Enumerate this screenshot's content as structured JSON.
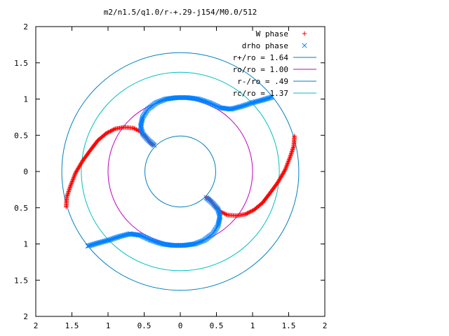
{
  "chart_data": {
    "type": "scatter",
    "title": "m2/n1.5/q1.0/r-+.29-j154/M0.0/512",
    "xlim": [
      -2,
      2
    ],
    "ylim": [
      -2,
      2
    ],
    "x_tick_labels": [
      "2",
      "1.5",
      "1",
      "0.5",
      "0",
      "0.5",
      "1",
      "1.5",
      "2"
    ],
    "y_tick_labels": [
      "2",
      "1.5",
      "1",
      "0.5",
      "0",
      "0.5",
      "1",
      "1.5",
      "2"
    ],
    "grid": false,
    "legend_position": "top-right",
    "series": [
      {
        "name": "W phase",
        "marker": "+",
        "color": "#ff0000",
        "points": [
          [
            -1.58,
            -0.49
          ],
          [
            -1.57,
            -0.35
          ],
          [
            -1.52,
            -0.2
          ],
          [
            -1.45,
            -0.02
          ],
          [
            -1.35,
            0.15
          ],
          [
            -1.24,
            0.3
          ],
          [
            -1.14,
            0.43
          ],
          [
            -1.02,
            0.53
          ],
          [
            -0.9,
            0.59
          ],
          [
            -0.78,
            0.61
          ],
          [
            -0.65,
            0.6
          ],
          [
            -0.55,
            0.55
          ],
          [
            -0.48,
            0.48
          ],
          [
            -0.42,
            0.4
          ],
          [
            -0.36,
            0.36
          ],
          [
            1.58,
            0.49
          ],
          [
            1.57,
            0.35
          ],
          [
            1.52,
            0.2
          ],
          [
            1.45,
            0.02
          ],
          [
            1.35,
            -0.15
          ],
          [
            1.24,
            -0.3
          ],
          [
            1.14,
            -0.43
          ],
          [
            1.02,
            -0.53
          ],
          [
            0.9,
            -0.59
          ],
          [
            0.78,
            -0.61
          ],
          [
            0.65,
            -0.6
          ],
          [
            0.55,
            -0.55
          ],
          [
            0.48,
            -0.48
          ],
          [
            0.42,
            -0.4
          ],
          [
            0.36,
            -0.36
          ]
        ]
      },
      {
        "name": "drho phase",
        "marker": "x",
        "color": "#0080ff",
        "points": [
          [
            -0.36,
            0.36
          ],
          [
            -0.45,
            0.44
          ],
          [
            -0.52,
            0.52
          ],
          [
            -0.55,
            0.62
          ],
          [
            -0.52,
            0.75
          ],
          [
            -0.45,
            0.86
          ],
          [
            -0.33,
            0.95
          ],
          [
            -0.2,
            1.0
          ],
          [
            -0.05,
            1.02
          ],
          [
            0.1,
            1.02
          ],
          [
            0.25,
            1.0
          ],
          [
            0.4,
            0.95
          ],
          [
            0.55,
            0.88
          ],
          [
            0.7,
            0.86
          ],
          [
            0.85,
            0.9
          ],
          [
            1.0,
            0.95
          ],
          [
            1.15,
            0.99
          ],
          [
            1.28,
            1.03
          ],
          [
            0.36,
            -0.36
          ],
          [
            0.45,
            -0.44
          ],
          [
            0.52,
            -0.52
          ],
          [
            0.55,
            -0.62
          ],
          [
            0.52,
            -0.75
          ],
          [
            0.45,
            -0.86
          ],
          [
            0.33,
            -0.95
          ],
          [
            0.2,
            -1.0
          ],
          [
            0.05,
            -1.02
          ],
          [
            -0.1,
            -1.02
          ],
          [
            -0.25,
            -1.0
          ],
          [
            -0.4,
            -0.95
          ],
          [
            -0.55,
            -0.88
          ],
          [
            -0.7,
            -0.86
          ],
          [
            -0.85,
            -0.9
          ],
          [
            -1.0,
            -0.95
          ],
          [
            -1.15,
            -0.99
          ],
          [
            -1.28,
            -1.03
          ]
        ]
      },
      {
        "name": "r+/ro = 1.64",
        "type": "circle",
        "radius": 1.64,
        "color": "#0080c0"
      },
      {
        "name": "ro/ro = 1.00",
        "type": "circle",
        "radius": 1.0,
        "color": "#c000c0"
      },
      {
        "name": "r-/ro = .49",
        "type": "circle",
        "radius": 0.49,
        "color": "#0080c0"
      },
      {
        "name": "rc/ro = 1.37",
        "type": "circle",
        "radius": 1.37,
        "color": "#00c0c0"
      }
    ]
  }
}
